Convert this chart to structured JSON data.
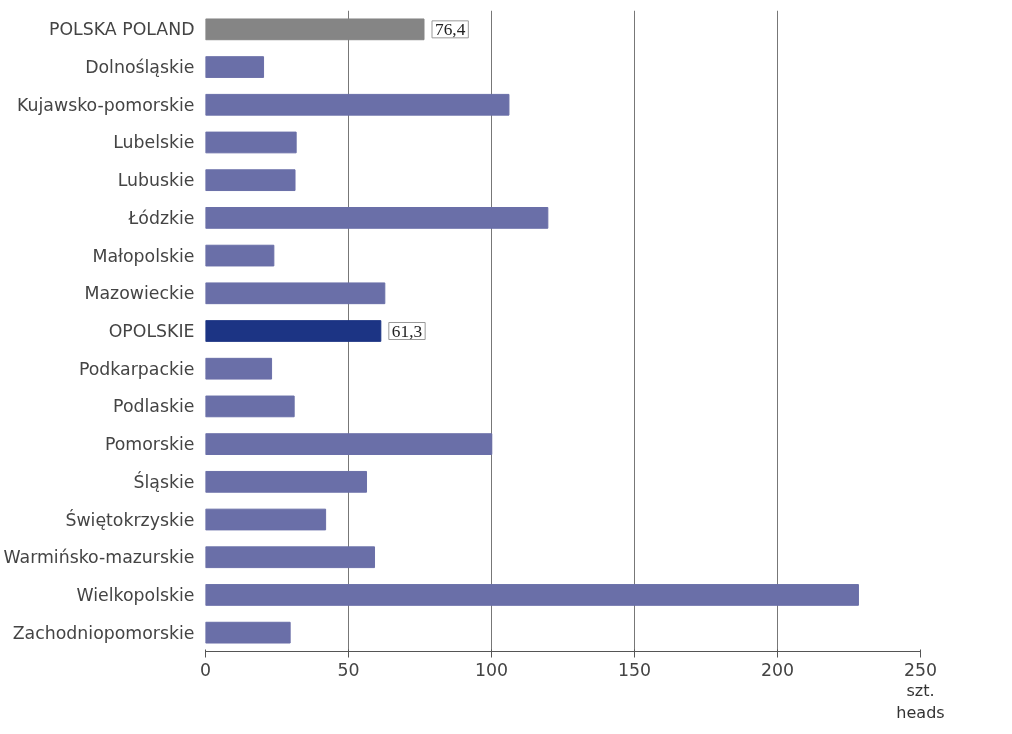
{
  "chart_data": {
    "type": "bar",
    "orientation": "horizontal",
    "xlabel": "szt.\nheads",
    "categories": [
      "POLSKA POLAND",
      "Dolnośląskie",
      "Kujawsko-pomorskie",
      "Lubelskie",
      "Lubuskie",
      "Łódzkie",
      "Małopolskie",
      "Mazowieckie",
      "OPOLSKIE",
      "Podkarpackie",
      "Podlaskie",
      "Pomorskie",
      "Śląskie",
      "Świętokrzyskie",
      "Warmińsko-mazurskie",
      "Wielkopolskie",
      "Zachodniopomorskie"
    ],
    "values": [
      76.4,
      20.3,
      106.1,
      31.7,
      31.3,
      119.7,
      23.9,
      62.7,
      61.3,
      23.1,
      31.0,
      100.1,
      56.3,
      42.0,
      59.1,
      228.3,
      29.6
    ],
    "colors": [
      "#858585",
      "#6a6fa8",
      "#6a6fa8",
      "#6a6fa8",
      "#6a6fa8",
      "#6a6fa8",
      "#6a6fa8",
      "#6a6fa8",
      "#1c3484",
      "#6a6fa8",
      "#6a6fa8",
      "#6a6fa8",
      "#6a6fa8",
      "#6a6fa8",
      "#6a6fa8",
      "#6a6fa8",
      "#6a6fa8"
    ],
    "value_labels": [
      "76,4",
      null,
      null,
      null,
      null,
      null,
      null,
      null,
      "61,3",
      null,
      null,
      null,
      null,
      null,
      null,
      null,
      null
    ],
    "xlim": [
      0,
      250
    ],
    "xticks": [
      0,
      50,
      100,
      150,
      200,
      250
    ],
    "grid": "x"
  }
}
